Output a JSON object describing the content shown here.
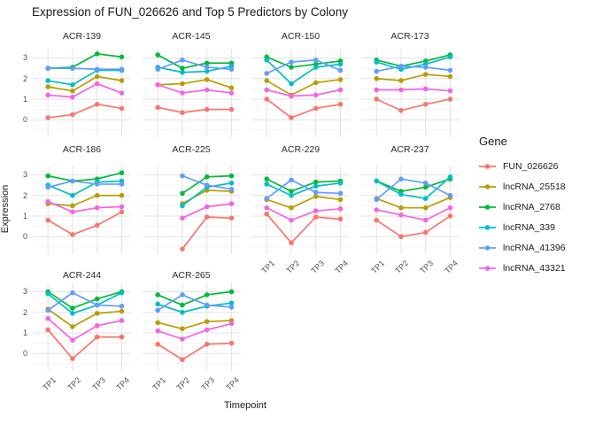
{
  "title": "Expression of FUN_026626 and Top 5 Predictors by Colony",
  "chart_data": {
    "type": "line",
    "faceted_by": "Colony",
    "title": "Expression of FUN_026626 and Top 5 Predictors by Colony",
    "xlabel": "Timepoint",
    "ylabel": "Expression",
    "x": [
      "TP1",
      "TP2",
      "TP3",
      "TP4"
    ],
    "yticks": [
      0,
      1,
      2,
      3
    ],
    "ylim": [
      -0.85,
      3.45
    ],
    "grid": true,
    "legend_title": "Gene",
    "legend_position": "right",
    "series_names": [
      "FUN_026626",
      "lncRNA_25518",
      "lncRNA_2768",
      "lncRNA_339",
      "lncRNA_41396",
      "lncRNA_43321"
    ],
    "series_colors": [
      "#F8766D",
      "#B79F00",
      "#00BA38",
      "#00BFC4",
      "#619CFF",
      "#F564E3"
    ],
    "facets": [
      {
        "label": "ACR-139",
        "values": [
          [
            0.1,
            0.25,
            0.75,
            0.55
          ],
          [
            1.6,
            1.4,
            2.1,
            1.9
          ],
          [
            2.5,
            2.55,
            3.2,
            3.05
          ],
          [
            1.9,
            1.7,
            2.4,
            2.4
          ],
          [
            2.5,
            2.5,
            2.45,
            2.45
          ],
          [
            1.2,
            1.1,
            1.75,
            1.3
          ]
        ]
      },
      {
        "label": "ACR-145",
        "values": [
          [
            0.6,
            0.35,
            0.5,
            0.5
          ],
          [
            1.7,
            1.75,
            1.95,
            1.55
          ],
          [
            3.15,
            2.5,
            2.75,
            2.75
          ],
          [
            2.55,
            2.3,
            2.35,
            2.6
          ],
          [
            2.45,
            2.9,
            2.55,
            2.45
          ],
          [
            1.7,
            1.3,
            1.45,
            1.3
          ]
        ]
      },
      {
        "label": "ACR-150",
        "values": [
          [
            1.0,
            0.1,
            0.55,
            0.75
          ],
          [
            1.9,
            1.2,
            1.8,
            1.95
          ],
          [
            3.05,
            2.55,
            2.7,
            2.85
          ],
          [
            2.9,
            1.75,
            2.55,
            2.7
          ],
          [
            2.25,
            2.8,
            2.9,
            2.4
          ],
          [
            1.45,
            1.15,
            1.2,
            1.45
          ]
        ]
      },
      {
        "label": "ACR-173",
        "values": [
          [
            1.0,
            0.45,
            0.75,
            1.0
          ],
          [
            2.0,
            1.9,
            2.2,
            2.1
          ],
          [
            2.9,
            2.6,
            2.85,
            3.15
          ],
          [
            2.8,
            2.45,
            2.7,
            3.05
          ],
          [
            2.35,
            2.6,
            2.55,
            2.4
          ],
          [
            1.45,
            1.45,
            1.5,
            1.4
          ]
        ]
      },
      {
        "label": "ACR-186",
        "values": [
          [
            0.8,
            0.1,
            0.55,
            1.2
          ],
          [
            1.6,
            1.5,
            2.0,
            2.0
          ],
          [
            2.95,
            2.7,
            2.8,
            3.1
          ],
          [
            2.5,
            2.0,
            2.65,
            2.7
          ],
          [
            2.4,
            2.7,
            2.55,
            2.55
          ],
          [
            1.7,
            1.2,
            1.4,
            1.45
          ]
        ]
      },
      {
        "label": "ACR-225",
        "values": [
          [
            null,
            -0.6,
            0.95,
            0.9
          ],
          [
            null,
            1.6,
            2.25,
            2.2
          ],
          [
            null,
            2.1,
            2.9,
            2.95
          ],
          [
            null,
            1.5,
            2.4,
            2.6
          ],
          [
            null,
            2.95,
            2.5,
            2.3
          ],
          [
            null,
            0.9,
            1.45,
            1.6
          ]
        ]
      },
      {
        "label": "ACR-229",
        "values": [
          [
            1.1,
            -0.3,
            0.95,
            0.85
          ],
          [
            1.8,
            1.4,
            1.95,
            1.8
          ],
          [
            2.8,
            2.2,
            2.65,
            2.7
          ],
          [
            2.55,
            2.0,
            2.45,
            2.6
          ],
          [
            1.85,
            2.75,
            2.15,
            2.1
          ],
          [
            1.4,
            0.8,
            1.25,
            1.35
          ]
        ]
      },
      {
        "label": "ACR-237",
        "values": [
          [
            0.8,
            0.0,
            0.2,
            1.0
          ],
          [
            1.85,
            1.4,
            1.4,
            1.9
          ],
          [
            2.7,
            2.2,
            2.4,
            2.8
          ],
          [
            2.7,
            2.05,
            1.85,
            2.9
          ],
          [
            1.8,
            2.8,
            2.6,
            2.0
          ],
          [
            1.3,
            1.05,
            0.8,
            1.4
          ]
        ]
      },
      {
        "label": "ACR-244",
        "values": [
          [
            1.15,
            -0.25,
            0.8,
            0.8
          ],
          [
            2.15,
            1.3,
            1.95,
            2.05
          ],
          [
            3.0,
            2.2,
            2.65,
            3.0
          ],
          [
            2.9,
            1.95,
            2.35,
            2.95
          ],
          [
            2.1,
            2.95,
            2.35,
            2.3
          ],
          [
            1.7,
            0.65,
            1.35,
            1.6
          ]
        ]
      },
      {
        "label": "ACR-265",
        "values": [
          [
            0.45,
            -0.3,
            0.45,
            0.5
          ],
          [
            1.5,
            1.2,
            1.55,
            1.6
          ],
          [
            2.85,
            2.35,
            2.85,
            3.0
          ],
          [
            2.4,
            2.0,
            2.3,
            2.45
          ],
          [
            2.1,
            2.85,
            2.35,
            2.25
          ],
          [
            1.1,
            0.7,
            1.15,
            1.45
          ]
        ]
      }
    ]
  },
  "colors": {
    "background": "#ffffff",
    "grid_major": "#e3e3e3",
    "grid_minor": "#f1f1f1",
    "tick_text": "#4d4d4d",
    "text": "#1a1a1a"
  }
}
